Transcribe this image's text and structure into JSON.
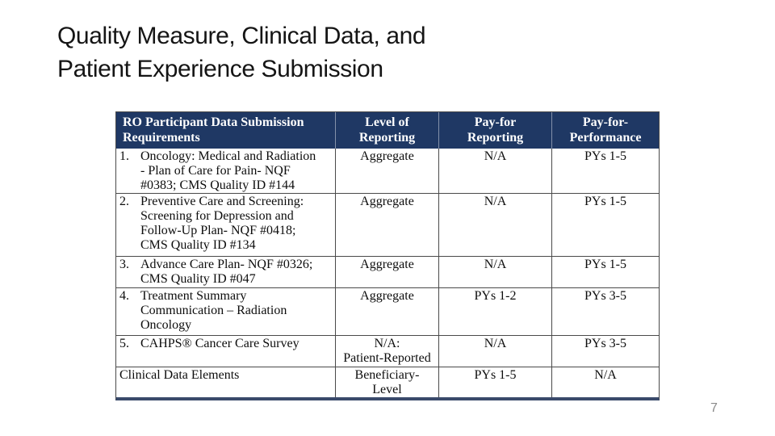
{
  "slide": {
    "title": "Quality Measure, Clinical Data, and\nPatient Experience Submission",
    "page_number": "7"
  },
  "colors": {
    "slide_background": "#ffffff",
    "title_text": "#151515",
    "table_header_background": "#1f3864",
    "table_header_text": "#ffffff",
    "table_border": "#4a4a4a",
    "table_bottom_border": "#3a4a6b",
    "table_body_text": "#0d0d0d",
    "page_number_text": "#8a8a8a"
  },
  "table": {
    "headers": [
      {
        "label": "RO Participant Data Submission\nRequirements"
      },
      {
        "label": "Level of\nReporting"
      },
      {
        "label": "Pay-for\nReporting"
      },
      {
        "label": "Pay-for-\nPerformance"
      }
    ],
    "rows": [
      {
        "num": "1.",
        "requirement": "Oncology: Medical and Radiation\n- Plan of Care for Pain- NQF\n#0383; CMS Quality ID #144",
        "level_of_reporting": "Aggregate",
        "pay_for_reporting": "N/A",
        "pay_for_performance": "PYs 1-5"
      },
      {
        "num": "2.",
        "requirement": "Preventive Care and Screening:\nScreening for Depression and\nFollow-Up Plan- NQF #0418;\nCMS Quality ID #134",
        "level_of_reporting": "Aggregate",
        "pay_for_reporting": "N/A",
        "pay_for_performance": "PYs 1-5"
      },
      {
        "num": "3.",
        "requirement": "Advance Care Plan- NQF #0326;\nCMS Quality ID #047",
        "level_of_reporting": "Aggregate",
        "pay_for_reporting": "N/A",
        "pay_for_performance": "PYs 1-5"
      },
      {
        "num": "4.",
        "requirement": "Treatment Summary\nCommunication – Radiation\nOncology",
        "level_of_reporting": "Aggregate",
        "pay_for_reporting": "PYs 1-2",
        "pay_for_performance": "PYs 3-5"
      },
      {
        "num": "5.",
        "requirement": "CAHPS® Cancer Care Survey",
        "level_of_reporting": "N/A:\nPatient-Reported",
        "pay_for_reporting": "N/A",
        "pay_for_performance": "PYs 3-5"
      },
      {
        "num": "",
        "requirement": "Clinical Data Elements",
        "level_of_reporting": "Beneficiary-\nLevel",
        "pay_for_reporting": "PYs 1-5",
        "pay_for_performance": "N/A"
      }
    ]
  }
}
